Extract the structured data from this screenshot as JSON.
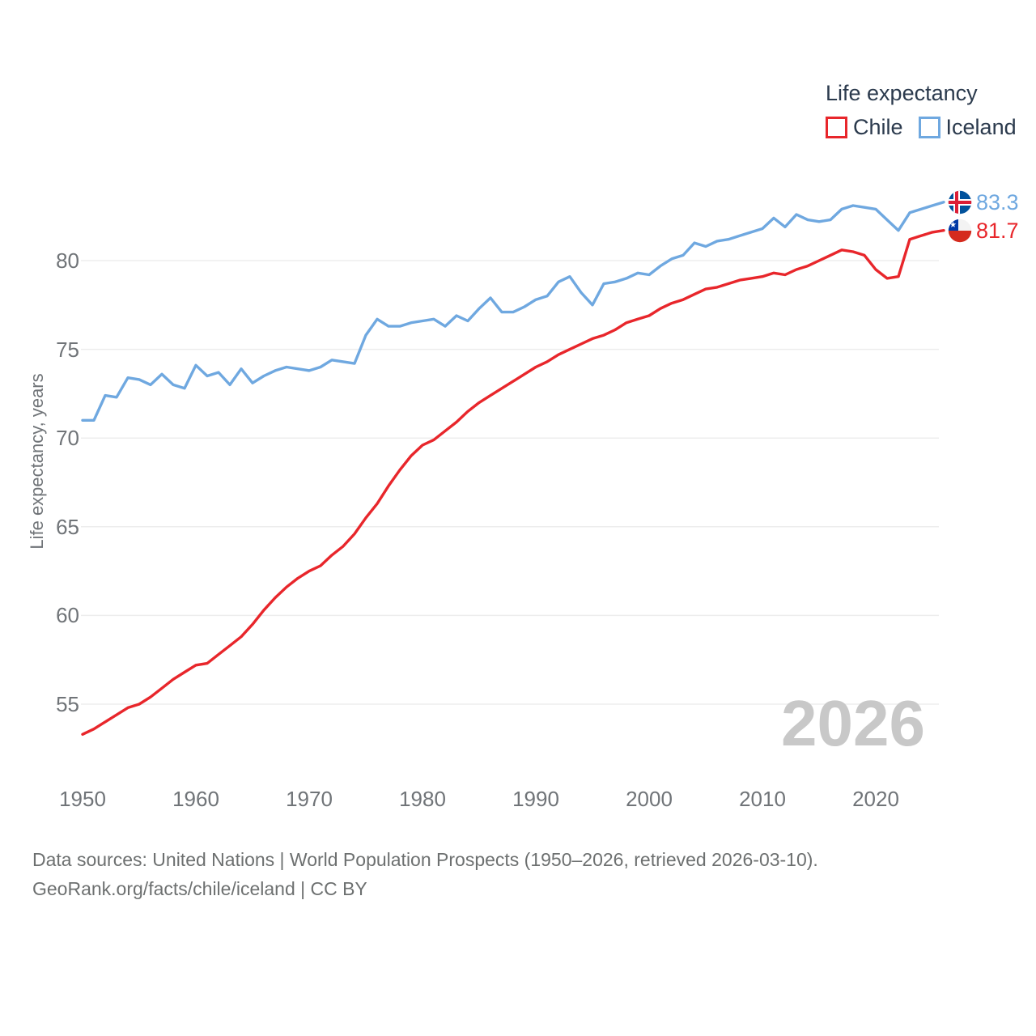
{
  "legend": {
    "title": "Life expectancy",
    "items": [
      {
        "label": "Chile",
        "color": "#e8262b"
      },
      {
        "label": "Iceland",
        "color": "#6fa8e0"
      }
    ]
  },
  "y_axis": {
    "title": "Life expectancy, years",
    "ticks": [
      "80",
      "75",
      "70",
      "65",
      "60",
      "55"
    ]
  },
  "x_axis": {
    "ticks": [
      "1950",
      "1960",
      "1970",
      "1980",
      "1990",
      "2000",
      "2010",
      "2020"
    ]
  },
  "end_labels": {
    "iceland": {
      "value": "83.3",
      "flag": "iceland-flag"
    },
    "chile": {
      "value": "81.7",
      "flag": "chile-flag"
    }
  },
  "watermark": "2026",
  "footer": {
    "line1": "Data sources: United Nations | World Population Prospects (1950–2026, retrieved 2026-03-10).",
    "line2": "GeoRank.org/facts/chile/iceland | CC BY"
  },
  "chart_data": {
    "type": "line",
    "title": "Life expectancy",
    "xlabel": "",
    "ylabel": "Life expectancy, years",
    "x_range": [
      1950,
      2026
    ],
    "ylim": [
      52,
      85
    ],
    "grid": true,
    "legend_position": "top-right",
    "x": [
      1950,
      1951,
      1952,
      1953,
      1954,
      1955,
      1956,
      1957,
      1958,
      1959,
      1960,
      1961,
      1962,
      1963,
      1964,
      1965,
      1966,
      1967,
      1968,
      1969,
      1970,
      1971,
      1972,
      1973,
      1974,
      1975,
      1976,
      1977,
      1978,
      1979,
      1980,
      1981,
      1982,
      1983,
      1984,
      1985,
      1986,
      1987,
      1988,
      1989,
      1990,
      1991,
      1992,
      1993,
      1994,
      1995,
      1996,
      1997,
      1998,
      1999,
      2000,
      2001,
      2002,
      2003,
      2004,
      2005,
      2006,
      2007,
      2008,
      2009,
      2010,
      2011,
      2012,
      2013,
      2014,
      2015,
      2016,
      2017,
      2018,
      2019,
      2020,
      2021,
      2022,
      2023,
      2024,
      2025,
      2026
    ],
    "series": [
      {
        "name": "Chile",
        "color": "#e8262b",
        "end_value": 81.7,
        "values": [
          53.3,
          53.6,
          54.0,
          54.4,
          54.8,
          55.0,
          55.4,
          55.9,
          56.4,
          56.8,
          57.2,
          57.3,
          57.8,
          58.3,
          58.8,
          59.5,
          60.3,
          61.0,
          61.6,
          62.1,
          62.5,
          62.8,
          63.4,
          63.9,
          64.6,
          65.5,
          66.3,
          67.3,
          68.2,
          69.0,
          69.6,
          69.9,
          70.4,
          70.9,
          71.5,
          72.0,
          72.4,
          72.8,
          73.2,
          73.6,
          74.0,
          74.3,
          74.7,
          75.0,
          75.3,
          75.6,
          75.8,
          76.1,
          76.5,
          76.7,
          76.9,
          77.3,
          77.6,
          77.8,
          78.1,
          78.4,
          78.5,
          78.7,
          78.9,
          79.0,
          79.1,
          79.3,
          79.2,
          79.5,
          79.7,
          80.0,
          80.3,
          80.6,
          80.5,
          80.3,
          79.5,
          79.0,
          79.1,
          81.2,
          81.4,
          81.6,
          81.7
        ]
      },
      {
        "name": "Iceland",
        "color": "#6fa8e0",
        "end_value": 83.3,
        "values": [
          71.0,
          71.0,
          72.4,
          72.3,
          73.4,
          73.3,
          73.0,
          73.6,
          73.0,
          72.8,
          74.1,
          73.5,
          73.7,
          73.0,
          73.9,
          73.1,
          73.5,
          73.8,
          74.0,
          73.9,
          73.8,
          74.0,
          74.4,
          74.3,
          74.2,
          75.8,
          76.7,
          76.3,
          76.3,
          76.5,
          76.6,
          76.7,
          76.3,
          76.9,
          76.6,
          77.3,
          77.9,
          77.1,
          77.1,
          77.4,
          77.8,
          78.0,
          78.8,
          79.1,
          78.2,
          77.5,
          78.7,
          78.8,
          79.0,
          79.3,
          79.2,
          79.7,
          80.1,
          80.3,
          81.0,
          80.8,
          81.1,
          81.2,
          81.4,
          81.6,
          81.8,
          82.4,
          81.9,
          82.6,
          82.3,
          82.2,
          82.3,
          82.9,
          83.1,
          83.0,
          82.9,
          82.3,
          81.7,
          82.7,
          82.9,
          83.1,
          83.3
        ]
      }
    ]
  }
}
